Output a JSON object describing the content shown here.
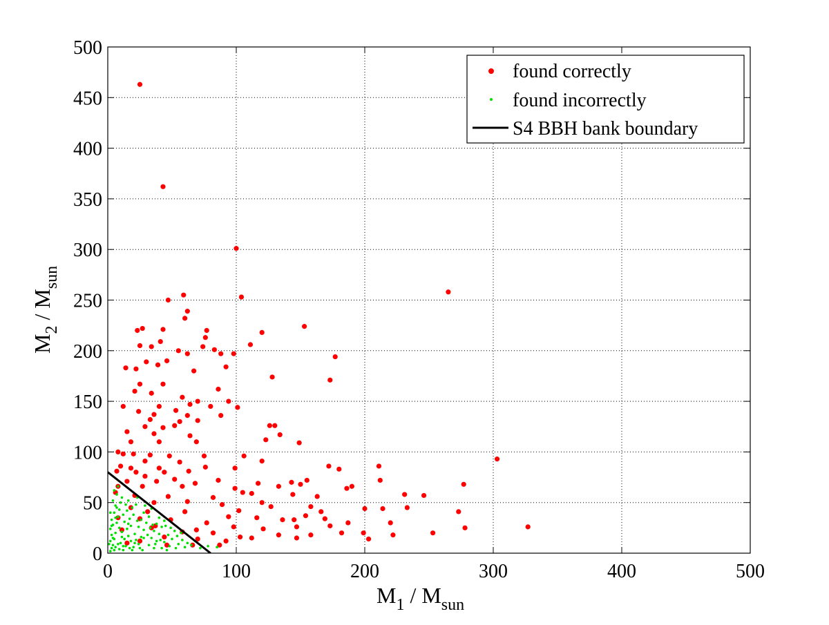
{
  "chart_data": {
    "type": "scatter",
    "xlabel": {
      "main": "M",
      "sub": "1",
      "rest": " / M",
      "sub2": "sun"
    },
    "ylabel": {
      "main": "M",
      "sub": "2",
      "rest": " / M",
      "sub2": "sun"
    },
    "xlim": [
      0,
      500
    ],
    "ylim": [
      0,
      500
    ],
    "xticks": [
      "0",
      "100",
      "200",
      "300",
      "400",
      "500"
    ],
    "yticks": [
      "0",
      "50",
      "100",
      "150",
      "200",
      "250",
      "300",
      "350",
      "400",
      "450",
      "500"
    ],
    "grid": true,
    "legend_position": "top-right",
    "series": [
      {
        "name": "found correctly",
        "color": "#ff0000",
        "marker": "dot",
        "points": [
          [
            25,
            463
          ],
          [
            43,
            362
          ],
          [
            100,
            301
          ],
          [
            59,
            255
          ],
          [
            104,
            253
          ],
          [
            265,
            258
          ],
          [
            47,
            250
          ],
          [
            62,
            239
          ],
          [
            60,
            232
          ],
          [
            153,
            224
          ],
          [
            27,
            222
          ],
          [
            43,
            221
          ],
          [
            77,
            220
          ],
          [
            23,
            220
          ],
          [
            120,
            218
          ],
          [
            76,
            213
          ],
          [
            41,
            209
          ],
          [
            25,
            205
          ],
          [
            34,
            204
          ],
          [
            74,
            204
          ],
          [
            55,
            200
          ],
          [
            83,
            201
          ],
          [
            62,
            197
          ],
          [
            88,
            197
          ],
          [
            98,
            197
          ],
          [
            111,
            206
          ],
          [
            177,
            194
          ],
          [
            30,
            189
          ],
          [
            46,
            190
          ],
          [
            14,
            183
          ],
          [
            39,
            186
          ],
          [
            22,
            182
          ],
          [
            67,
            180
          ],
          [
            92,
            184
          ],
          [
            128,
            174
          ],
          [
            173,
            171
          ],
          [
            25,
            167
          ],
          [
            43,
            167
          ],
          [
            86,
            162
          ],
          [
            21,
            160
          ],
          [
            34,
            158
          ],
          [
            58,
            154
          ],
          [
            70,
            150
          ],
          [
            94,
            150
          ],
          [
            12,
            145
          ],
          [
            40,
            145
          ],
          [
            64,
            147
          ],
          [
            80,
            145
          ],
          [
            101,
            144
          ],
          [
            53,
            141
          ],
          [
            24,
            140
          ],
          [
            36,
            137
          ],
          [
            62,
            136
          ],
          [
            88,
            136
          ],
          [
            33,
            132
          ],
          [
            56,
            130
          ],
          [
            70,
            131
          ],
          [
            29,
            125
          ],
          [
            43,
            124
          ],
          [
            52,
            126
          ],
          [
            126,
            126
          ],
          [
            130,
            126
          ],
          [
            15,
            120
          ],
          [
            36,
            118
          ],
          [
            64,
            116
          ],
          [
            134,
            117
          ],
          [
            18,
            110
          ],
          [
            40,
            110
          ],
          [
            69,
            110
          ],
          [
            123,
            112
          ],
          [
            149,
            109
          ],
          [
            20,
            98
          ],
          [
            8,
            100
          ],
          [
            12,
            98
          ],
          [
            33,
            97
          ],
          [
            48,
            96
          ],
          [
            75,
            96
          ],
          [
            106,
            96
          ],
          [
            29,
            91
          ],
          [
            56,
            90
          ],
          [
            120,
            91
          ],
          [
            10,
            86
          ],
          [
            18,
            84
          ],
          [
            40,
            84
          ],
          [
            76,
            85
          ],
          [
            99,
            84
          ],
          [
            7,
            81
          ],
          [
            22,
            80
          ],
          [
            44,
            80
          ],
          [
            63,
            81
          ],
          [
            29,
            76
          ],
          [
            52,
            73
          ],
          [
            86,
            72
          ],
          [
            172,
            86
          ],
          [
            180,
            83
          ],
          [
            211,
            86
          ],
          [
            303,
            93
          ],
          [
            15,
            71
          ],
          [
            38,
            71
          ],
          [
            68,
            69
          ],
          [
            117,
            69
          ],
          [
            155,
            72
          ],
          [
            143,
            70
          ],
          [
            150,
            68
          ],
          [
            190,
            66
          ],
          [
            212,
            72
          ],
          [
            277,
            68
          ],
          [
            8,
            66
          ],
          [
            27,
            66
          ],
          [
            58,
            66
          ],
          [
            99,
            64
          ],
          [
            133,
            66
          ],
          [
            186,
            64
          ],
          [
            6,
            60
          ],
          [
            21,
            57
          ],
          [
            47,
            56
          ],
          [
            82,
            55
          ],
          [
            105,
            60
          ],
          [
            112,
            59
          ],
          [
            144,
            58
          ],
          [
            163,
            56
          ],
          [
            246,
            57
          ],
          [
            231,
            58
          ],
          [
            36,
            50
          ],
          [
            62,
            51
          ],
          [
            89,
            48
          ],
          [
            120,
            50
          ],
          [
            158,
            46
          ],
          [
            200,
            44
          ],
          [
            273,
            41
          ],
          [
            18,
            45
          ],
          [
            31,
            41
          ],
          [
            60,
            41
          ],
          [
            102,
            42
          ],
          [
            127,
            46
          ],
          [
            154,
            37
          ],
          [
            166,
            41
          ],
          [
            214,
            44
          ],
          [
            233,
            45
          ],
          [
            8,
            35
          ],
          [
            25,
            34
          ],
          [
            49,
            33
          ],
          [
            77,
            30
          ],
          [
            94,
            36
          ],
          [
            116,
            35
          ],
          [
            136,
            33
          ],
          [
            145,
            33
          ],
          [
            169,
            34
          ],
          [
            187,
            30
          ],
          [
            37,
            27
          ],
          [
            69,
            23
          ],
          [
            98,
            26
          ],
          [
            121,
            24
          ],
          [
            147,
            26
          ],
          [
            173,
            27
          ],
          [
            220,
            30
          ],
          [
            278,
            25
          ],
          [
            11,
            23
          ],
          [
            34,
            25
          ],
          [
            58,
            21
          ],
          [
            82,
            20
          ],
          [
            103,
            16
          ],
          [
            133,
            18
          ],
          [
            158,
            18
          ],
          [
            182,
            20
          ],
          [
            199,
            20
          ],
          [
            253,
            20
          ],
          [
            327,
            26
          ],
          [
            44,
            16
          ],
          [
            70,
            14
          ],
          [
            92,
            12
          ],
          [
            112,
            15
          ],
          [
            147,
            15
          ],
          [
            203,
            14
          ],
          [
            222,
            18
          ],
          [
            66,
            8
          ],
          [
            87,
            8
          ],
          [
            46,
            8
          ],
          [
            25,
            12
          ],
          [
            15,
            10
          ]
        ]
      },
      {
        "name": "found incorrectly",
        "color": "#00e000",
        "marker": "small-dot",
        "points": [
          [
            2,
            2
          ],
          [
            3,
            5
          ],
          [
            4,
            8
          ],
          [
            2,
            12
          ],
          [
            5,
            14
          ],
          [
            3,
            18
          ],
          [
            6,
            20
          ],
          [
            2,
            24
          ],
          [
            4,
            28
          ],
          [
            7,
            30
          ],
          [
            3,
            33
          ],
          [
            8,
            36
          ],
          [
            5,
            40
          ],
          [
            9,
            43
          ],
          [
            6,
            47
          ],
          [
            10,
            50
          ],
          [
            4,
            52
          ],
          [
            11,
            55
          ],
          [
            7,
            58
          ],
          [
            5,
            62
          ],
          [
            8,
            66
          ],
          [
            12,
            3
          ],
          [
            14,
            7
          ],
          [
            10,
            10
          ],
          [
            13,
            14
          ],
          [
            16,
            17
          ],
          [
            11,
            21
          ],
          [
            15,
            24
          ],
          [
            18,
            27
          ],
          [
            13,
            31
          ],
          [
            17,
            34
          ],
          [
            20,
            38
          ],
          [
            15,
            42
          ],
          [
            19,
            45
          ],
          [
            22,
            48
          ],
          [
            16,
            52
          ],
          [
            23,
            55
          ],
          [
            20,
            6
          ],
          [
            24,
            9
          ],
          [
            22,
            13
          ],
          [
            26,
            16
          ],
          [
            21,
            19
          ],
          [
            28,
            23
          ],
          [
            24,
            26
          ],
          [
            30,
            30
          ],
          [
            26,
            33
          ],
          [
            32,
            36
          ],
          [
            28,
            40
          ],
          [
            34,
            44
          ],
          [
            29,
            47
          ],
          [
            36,
            5
          ],
          [
            32,
            8
          ],
          [
            38,
            12
          ],
          [
            34,
            15
          ],
          [
            40,
            19
          ],
          [
            36,
            22
          ],
          [
            42,
            26
          ],
          [
            38,
            29
          ],
          [
            44,
            32
          ],
          [
            40,
            35
          ],
          [
            46,
            3
          ],
          [
            48,
            7
          ],
          [
            44,
            11
          ],
          [
            50,
            14
          ],
          [
            47,
            18
          ],
          [
            52,
            22
          ],
          [
            49,
            25
          ],
          [
            55,
            9
          ],
          [
            58,
            13
          ],
          [
            54,
            17
          ],
          [
            60,
            6
          ],
          [
            62,
            10
          ],
          [
            57,
            20
          ],
          [
            65,
            8
          ],
          [
            68,
            12
          ],
          [
            72,
            5
          ],
          [
            78,
            7
          ],
          [
            85,
            6
          ],
          [
            9,
            4
          ],
          [
            1,
            9
          ],
          [
            6,
            6
          ],
          [
            3,
            27
          ],
          [
            7,
            45
          ],
          [
            2,
            40
          ],
          [
            12,
            38
          ],
          [
            25,
            5
          ],
          [
            35,
            28
          ],
          [
            18,
            12
          ],
          [
            27,
            3
          ],
          [
            31,
            18
          ],
          [
            42,
            5
          ],
          [
            11,
            16
          ],
          [
            19,
            3
          ],
          [
            14,
            48
          ],
          [
            6,
            35
          ],
          [
            9,
            25
          ],
          [
            4,
            15
          ],
          [
            21,
            10
          ],
          [
            45,
            27
          ],
          [
            53,
            5
          ],
          [
            16,
            29
          ],
          [
            28,
            15
          ],
          [
            37,
            9
          ],
          [
            5,
            3
          ],
          [
            8,
            9
          ],
          [
            12,
            7
          ],
          [
            17,
            5
          ],
          [
            23,
            32
          ],
          [
            33,
            25
          ],
          [
            41,
            13
          ]
        ]
      },
      {
        "name": "S4 BBH bank boundary",
        "color": "#000000",
        "marker": "line",
        "points": [
          [
            0,
            80
          ],
          [
            80,
            0
          ]
        ]
      }
    ]
  }
}
